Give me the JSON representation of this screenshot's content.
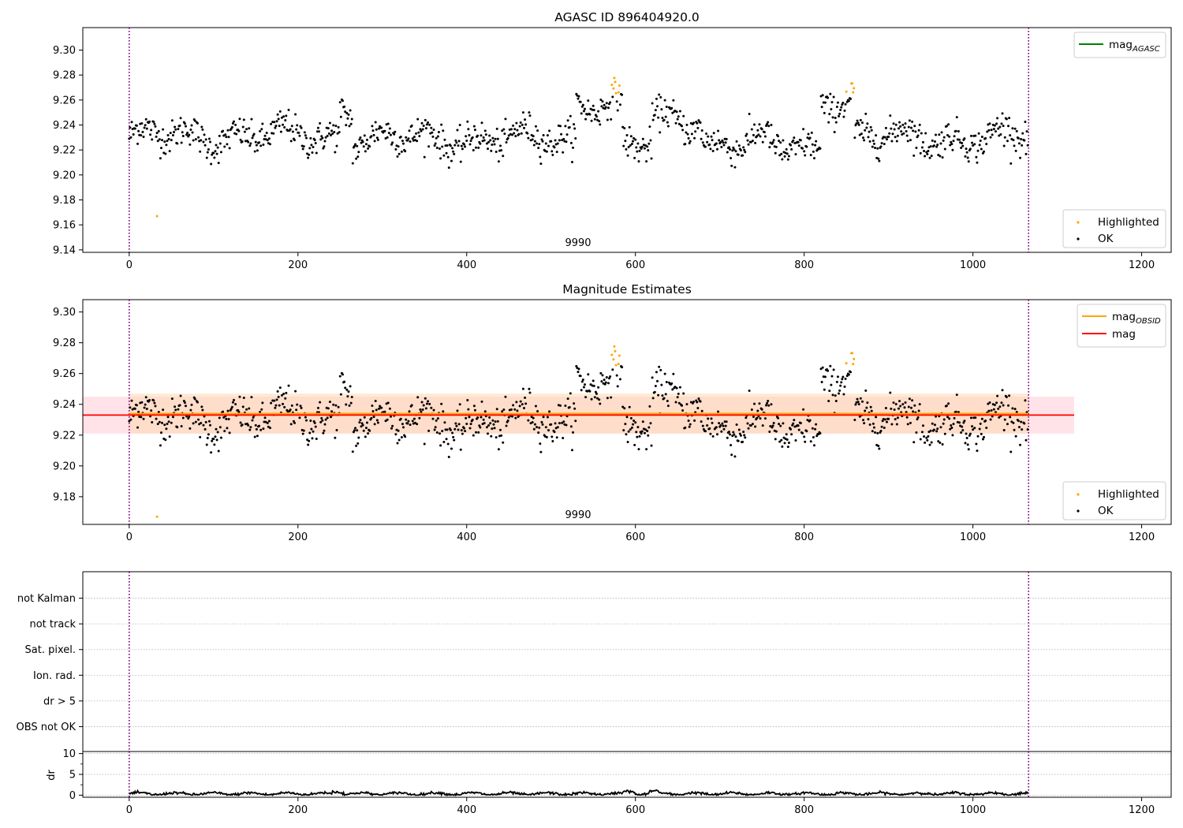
{
  "colors": {
    "ok": "#000000",
    "highlighted": "#ffa500",
    "mag_agasc": "#008000",
    "mag_obsid": "#ffa500",
    "mag": "#ff0000",
    "band_mag": "#ffc0cb",
    "band_obsid": "#ffd9b3",
    "obs_boundary": "#800080",
    "grid": "#b0b0b0"
  },
  "chart_data": [
    {
      "type": "scatter",
      "title": "AGASC ID 896404920.0",
      "xlim": [
        -55,
        1235
      ],
      "ylim": [
        9.138,
        9.318
      ],
      "xticks": [
        0,
        200,
        400,
        600,
        800,
        1000,
        1200
      ],
      "yticks": [
        9.14,
        9.16,
        9.18,
        9.2,
        9.22,
        9.24,
        9.26,
        9.28,
        9.3
      ],
      "obsid_label": "9990",
      "obs_boundaries": [
        0,
        1066
      ],
      "legend_lines": [
        {
          "label": "mag",
          "sub": "AGASC",
          "color_key": "mag_agasc"
        }
      ],
      "legend_points": [
        "Highlighted",
        "OK"
      ]
    },
    {
      "type": "scatter",
      "title": "Magnitude Estimates",
      "xlim": [
        -55,
        1235
      ],
      "ylim": [
        9.162,
        9.308
      ],
      "xticks": [
        0,
        200,
        400,
        600,
        800,
        1000,
        1200
      ],
      "yticks": [
        9.18,
        9.2,
        9.22,
        9.24,
        9.26,
        9.28,
        9.3
      ],
      "obsid_label": "9990",
      "obs_boundaries": [
        0,
        1066
      ],
      "mag": 9.233,
      "mag_band": [
        9.221,
        9.245
      ],
      "mag_band_x": [
        -55,
        1120
      ],
      "mag_obsid": 9.234,
      "obsid_band": [
        9.221,
        9.247
      ],
      "obsid_band_x": [
        0,
        1066
      ],
      "legend_lines": [
        {
          "label": "mag",
          "sub": "OBSID",
          "color_key": "mag_obsid"
        },
        {
          "label": "mag",
          "sub": "",
          "color_key": "mag"
        }
      ],
      "legend_points": [
        "Highlighted",
        "OK"
      ]
    },
    {
      "type": "scatter",
      "title": "",
      "xlim": [
        -55,
        1235
      ],
      "categories": [
        "OBS not OK",
        "dr > 5",
        "Ion. rad.",
        "Sat. pixel.",
        "not track",
        "not Kalman"
      ],
      "obs_boundaries": [
        0,
        1066
      ]
    },
    {
      "type": "line",
      "title": "",
      "ylabel": "dr",
      "xlim": [
        -55,
        1235
      ],
      "ylim": [
        -0.5,
        10.5
      ],
      "xticks": [
        0,
        200,
        400,
        600,
        800,
        1000,
        1200
      ],
      "yticks": [
        0,
        5,
        10
      ],
      "obs_boundaries": [
        0,
        1066
      ],
      "dr_level": 0.35
    }
  ],
  "series_model": {
    "n_points": 1066,
    "baseline": 9.231,
    "noise": 0.0085,
    "segments": [
      {
        "x": [
          0,
          250
        ],
        "offset": 0.0
      },
      {
        "x": [
          250,
          265
        ],
        "offset": 0.022
      },
      {
        "x": [
          265,
          530
        ],
        "offset": -0.002
      },
      {
        "x": [
          530,
          585
        ],
        "offset": 0.028
      },
      {
        "x": [
          585,
          620
        ],
        "offset": -0.008
      },
      {
        "x": [
          620,
          680
        ],
        "offset": 0.012
      },
      {
        "x": [
          680,
          760
        ],
        "offset": -0.005
      },
      {
        "x": [
          760,
          820
        ],
        "offset": -0.01
      },
      {
        "x": [
          820,
          860
        ],
        "offset": 0.03
      },
      {
        "x": [
          860,
          1066
        ],
        "offset": -0.001
      }
    ],
    "outliers": [
      {
        "x": 33,
        "y": 9.167
      }
    ],
    "highlight_threshold": 9.265
  }
}
